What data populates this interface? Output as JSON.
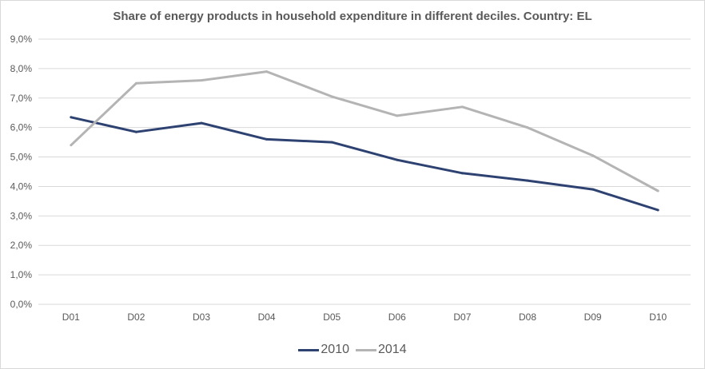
{
  "chart_data": {
    "type": "line",
    "title": "Share of energy products in household expenditure in different deciles. Country: EL",
    "xlabel": "",
    "ylabel": "",
    "categories": [
      "D01",
      "D02",
      "D03",
      "D04",
      "D05",
      "D06",
      "D07",
      "D08",
      "D09",
      "D10"
    ],
    "ylim": [
      0,
      9
    ],
    "yticks": [
      "0,0%",
      "1,0%",
      "2,0%",
      "3,0%",
      "4,0%",
      "5,0%",
      "6,0%",
      "7,0%",
      "8,0%",
      "9,0%"
    ],
    "grid": true,
    "legend_position": "bottom",
    "series": [
      {
        "name": "2010",
        "color": "#2e4272",
        "values": [
          6.35,
          5.85,
          6.15,
          5.6,
          5.5,
          4.9,
          4.45,
          4.2,
          3.9,
          3.2
        ]
      },
      {
        "name": "2014",
        "color": "#b4b4b4",
        "values": [
          5.4,
          7.5,
          7.6,
          7.9,
          7.05,
          6.4,
          6.7,
          6.0,
          5.05,
          3.85
        ]
      }
    ]
  }
}
